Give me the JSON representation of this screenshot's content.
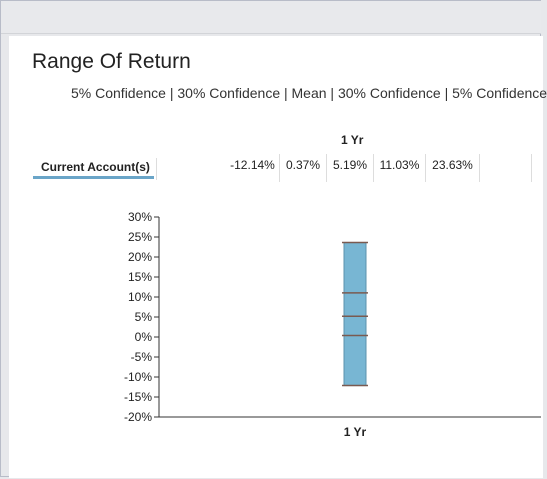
{
  "panel": {
    "title": "Range Of Return",
    "subtitle": "5% Confidence | 30% Confidence | Mean | 30% Confidence | 5% Confidence"
  },
  "table": {
    "column_header": "1 Yr",
    "row_label": "Current Account(s)",
    "values": [
      "-12.14%",
      "0.37%",
      "5.19%",
      "11.03%",
      "23.63%"
    ]
  },
  "colors": {
    "bar_fill": "#78b6d3",
    "bar_stroke": "#5b93ad",
    "marker": "#7a5a50",
    "accent": "#6aa5c8"
  },
  "chart_data": {
    "type": "bar",
    "categories": [
      "1 Yr"
    ],
    "ylim": [
      -20,
      30
    ],
    "yticks": [
      30,
      25,
      20,
      15,
      10,
      5,
      0,
      -5,
      -10,
      -15,
      -20
    ],
    "ytick_labels": [
      "30%",
      "25%",
      "20%",
      "15%",
      "10%",
      "5%",
      "0%",
      "-5%",
      "-10%",
      "-15%",
      "-20%"
    ],
    "xlabel": "",
    "ylabel": "",
    "range": {
      "low": -12.14,
      "high": 23.63
    },
    "markers": [
      0.37,
      5.19,
      11.03
    ],
    "grid": false
  }
}
